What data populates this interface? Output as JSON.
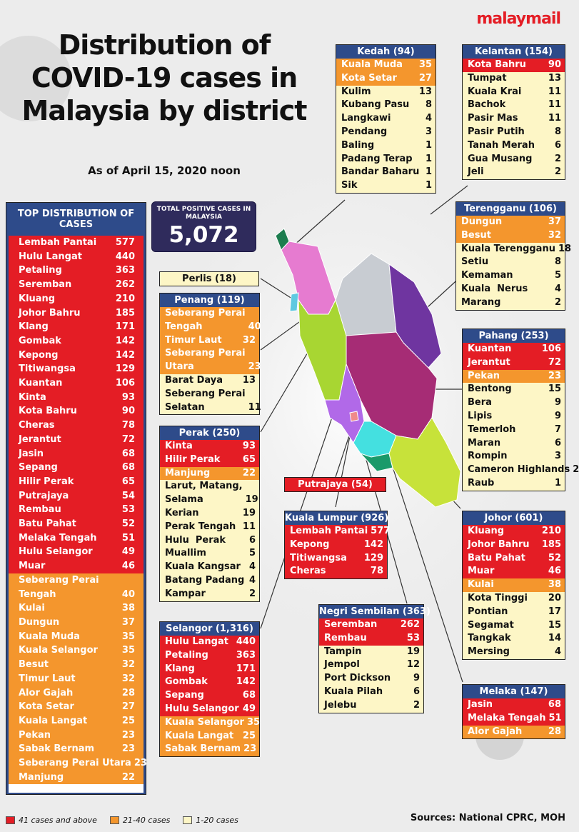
{
  "brand": "malaymail",
  "title": "Distribution of COVID-19 cases in Malaysia by district",
  "subtitle": "As of April 15, 2020 noon",
  "total_label": "TOTAL POSITIVE CASES IN MALAYSIA",
  "total_value": "5,072",
  "colors": {
    "red": "#e41d25",
    "orange": "#f4962d",
    "yellow": "#fdf6c6",
    "header": "#2e4b8a",
    "total_box": "#2f2b5c"
  },
  "legend": [
    {
      "label": "41 cases and above",
      "color": "#e41d25"
    },
    {
      "label": "21-40 cases",
      "color": "#f4962d"
    },
    {
      "label": "1-20 cases",
      "color": "#fdf6c6"
    }
  ],
  "sources": "Sources: National CPRC, MOH",
  "chart_data": {
    "type": "table",
    "top_distribution": {
      "title": "TOP DISTRIBUTION OF CASES",
      "rows": [
        {
          "name": "Lembah Pantai",
          "value": 577,
          "band": "r"
        },
        {
          "name": "Hulu Langat",
          "value": 440,
          "band": "r"
        },
        {
          "name": "Petaling",
          "value": 363,
          "band": "r"
        },
        {
          "name": "Seremban",
          "value": 262,
          "band": "r"
        },
        {
          "name": "Kluang",
          "value": 210,
          "band": "r"
        },
        {
          "name": "Johor Bahru",
          "value": 185,
          "band": "r"
        },
        {
          "name": "Klang",
          "value": 171,
          "band": "r"
        },
        {
          "name": "Gombak",
          "value": 142,
          "band": "r"
        },
        {
          "name": "Kepong",
          "value": 142,
          "band": "r"
        },
        {
          "name": "Titiwangsa",
          "value": 129,
          "band": "r"
        },
        {
          "name": "Kuantan",
          "value": 106,
          "band": "r"
        },
        {
          "name": "Kinta",
          "value": 93,
          "band": "r"
        },
        {
          "name": "Kota Bahru",
          "value": 90,
          "band": "r"
        },
        {
          "name": "Cheras",
          "value": 78,
          "band": "r"
        },
        {
          "name": "Jerantut",
          "value": 72,
          "band": "r"
        },
        {
          "name": "Jasin",
          "value": 68,
          "band": "r"
        },
        {
          "name": "Sepang",
          "value": 68,
          "band": "r"
        },
        {
          "name": "Hilir Perak",
          "value": 65,
          "band": "r"
        },
        {
          "name": "Putrajaya",
          "value": 54,
          "band": "r"
        },
        {
          "name": "Rembau",
          "value": 53,
          "band": "r"
        },
        {
          "name": "Batu Pahat",
          "value": 52,
          "band": "r"
        },
        {
          "name": "Melaka Tengah",
          "value": 51,
          "band": "r"
        },
        {
          "name": "Hulu Selangor",
          "value": 49,
          "band": "r"
        },
        {
          "name": "Muar",
          "value": 46,
          "band": "r"
        },
        {
          "name": "Seberang Perai\nTengah",
          "value": 40,
          "band": "o"
        },
        {
          "name": "Kulai",
          "value": 38,
          "band": "o"
        },
        {
          "name": "Dungun",
          "value": 37,
          "band": "o"
        },
        {
          "name": "Kuala Muda",
          "value": 35,
          "band": "o"
        },
        {
          "name": "Kuala Selangor",
          "value": 35,
          "band": "o"
        },
        {
          "name": "Besut",
          "value": 32,
          "band": "o"
        },
        {
          "name": "Timur Laut",
          "value": 32,
          "band": "o"
        },
        {
          "name": "Alor Gajah",
          "value": 28,
          "band": "o"
        },
        {
          "name": "Kota Setar",
          "value": 27,
          "band": "o"
        },
        {
          "name": "Kuala Langat",
          "value": 25,
          "band": "o"
        },
        {
          "name": "Pekan",
          "value": 23,
          "band": "o"
        },
        {
          "name": "Sabak Bernam",
          "value": 23,
          "band": "o"
        },
        {
          "name": "Seberang Perai Utara",
          "value": 23,
          "band": "o"
        },
        {
          "name": "Manjung",
          "value": 22,
          "band": "o"
        }
      ]
    },
    "states": [
      {
        "id": "kedah",
        "title": "Kedah (94)",
        "rows": [
          {
            "name": "Kuala Muda",
            "value": 35,
            "band": "o"
          },
          {
            "name": "Kota Setar",
            "value": 27,
            "band": "o"
          },
          {
            "name": "Kulim",
            "value": 13,
            "band": "y"
          },
          {
            "name": "Kubang Pasu",
            "value": 8,
            "band": "y"
          },
          {
            "name": "Langkawi",
            "value": 4,
            "band": "y"
          },
          {
            "name": "Pendang",
            "value": 3,
            "band": "y"
          },
          {
            "name": "Baling",
            "value": 1,
            "band": "y"
          },
          {
            "name": "Padang Terap",
            "value": 1,
            "band": "y"
          },
          {
            "name": "Bandar Baharu",
            "value": 1,
            "band": "y"
          },
          {
            "name": "Sik",
            "value": 1,
            "band": "y"
          }
        ]
      },
      {
        "id": "kelantan",
        "title": "Kelantan (154)",
        "rows": [
          {
            "name": "Kota Bahru",
            "value": 90,
            "band": "r"
          },
          {
            "name": "Tumpat",
            "value": 13,
            "band": "y"
          },
          {
            "name": "Kuala Krai",
            "value": 11,
            "band": "y"
          },
          {
            "name": "Bachok",
            "value": 11,
            "band": "y"
          },
          {
            "name": "Pasir Mas",
            "value": 11,
            "band": "y"
          },
          {
            "name": "Pasir Putih",
            "value": 8,
            "band": "y"
          },
          {
            "name": "Tanah Merah",
            "value": 6,
            "band": "y"
          },
          {
            "name": "Gua Musang",
            "value": 2,
            "band": "y"
          },
          {
            "name": "Jeli",
            "value": 2,
            "band": "y"
          }
        ]
      },
      {
        "id": "terengganu",
        "title": "Terengganu (106)",
        "rows": [
          {
            "name": "Dungun",
            "value": 37,
            "band": "o"
          },
          {
            "name": "Besut",
            "value": 32,
            "band": "o"
          },
          {
            "name": "Kuala Terengganu",
            "value": 18,
            "band": "y"
          },
          {
            "name": "Setiu",
            "value": 8,
            "band": "y"
          },
          {
            "name": "Kemaman",
            "value": 5,
            "band": "y"
          },
          {
            "name": "Kuala  Nerus",
            "value": 4,
            "band": "y"
          },
          {
            "name": "Marang",
            "value": 2,
            "band": "y"
          }
        ]
      },
      {
        "id": "pahang",
        "title": "Pahang (253)",
        "rows": [
          {
            "name": "Kuantan",
            "value": 106,
            "band": "r"
          },
          {
            "name": "Jerantut",
            "value": 72,
            "band": "r"
          },
          {
            "name": "Pekan",
            "value": 23,
            "band": "o"
          },
          {
            "name": "Bentong",
            "value": 15,
            "band": "y"
          },
          {
            "name": "Bera",
            "value": 9,
            "band": "y"
          },
          {
            "name": "Lipis",
            "value": 9,
            "band": "y"
          },
          {
            "name": "Temerloh",
            "value": 7,
            "band": "y"
          },
          {
            "name": "Maran",
            "value": 6,
            "band": "y"
          },
          {
            "name": "Rompin",
            "value": 3,
            "band": "y"
          },
          {
            "name": "Cameron Highlands",
            "value": 2,
            "band": "y"
          },
          {
            "name": "Raub",
            "value": 1,
            "band": "y"
          }
        ]
      },
      {
        "id": "johor",
        "title": "Johor (601)",
        "rows": [
          {
            "name": "Kluang",
            "value": 210,
            "band": "r"
          },
          {
            "name": "Johor Bahru",
            "value": 185,
            "band": "r"
          },
          {
            "name": "Batu Pahat",
            "value": 52,
            "band": "r"
          },
          {
            "name": "Muar",
            "value": 46,
            "band": "r"
          },
          {
            "name": "Kulai",
            "value": 38,
            "band": "o"
          },
          {
            "name": "Kota Tinggi",
            "value": 20,
            "band": "y"
          },
          {
            "name": "Pontian",
            "value": 17,
            "band": "y"
          },
          {
            "name": "Segamat",
            "value": 15,
            "band": "y"
          },
          {
            "name": "Tangkak",
            "value": 14,
            "band": "y"
          },
          {
            "name": "Mersing",
            "value": 4,
            "band": "y"
          }
        ]
      },
      {
        "id": "melaka",
        "title": "Melaka (147)",
        "rows": [
          {
            "name": "Jasin",
            "value": 68,
            "band": "r"
          },
          {
            "name": "Melaka Tengah",
            "value": 51,
            "band": "r"
          },
          {
            "name": "Alor Gajah",
            "value": 28,
            "band": "o"
          }
        ]
      },
      {
        "id": "penang",
        "title": "Penang (119)",
        "rows": [
          {
            "name": "Seberang Perai\nTengah",
            "value": 40,
            "band": "o"
          },
          {
            "name": "Timur Laut",
            "value": 32,
            "band": "o"
          },
          {
            "name": "Seberang Perai\nUtara",
            "value": 23,
            "band": "o"
          },
          {
            "name": "Barat Daya",
            "value": 13,
            "band": "y"
          },
          {
            "name": "Seberang Perai\nSelatan",
            "value": 11,
            "band": "y"
          }
        ]
      },
      {
        "id": "perak",
        "title": "Perak (250)",
        "rows": [
          {
            "name": "Kinta",
            "value": 93,
            "band": "r"
          },
          {
            "name": "Hilir Perak",
            "value": 65,
            "band": "r"
          },
          {
            "name": "Manjung",
            "value": 22,
            "band": "o"
          },
          {
            "name": "Larut, Matang,\nSelama",
            "value": 19,
            "band": "y"
          },
          {
            "name": "Kerian",
            "value": 19,
            "band": "y"
          },
          {
            "name": "Perak Tengah",
            "value": 11,
            "band": "y"
          },
          {
            "name": "Hulu  Perak",
            "value": 6,
            "band": "y"
          },
          {
            "name": "Muallim",
            "value": 5,
            "band": "y"
          },
          {
            "name": "Kuala Kangsar",
            "value": 4,
            "band": "y"
          },
          {
            "name": "Batang Padang",
            "value": 4,
            "band": "y"
          },
          {
            "name": "Kampar",
            "value": 2,
            "band": "y"
          }
        ]
      },
      {
        "id": "selangor",
        "title": "Selangor (1,316)",
        "rows": [
          {
            "name": "Hulu Langat",
            "value": 440,
            "band": "r"
          },
          {
            "name": "Petaling",
            "value": 363,
            "band": "r"
          },
          {
            "name": "Klang",
            "value": 171,
            "band": "r"
          },
          {
            "name": "Gombak",
            "value": 142,
            "band": "r"
          },
          {
            "name": "Sepang",
            "value": 68,
            "band": "r"
          },
          {
            "name": "Hulu Selangor",
            "value": 49,
            "band": "r"
          },
          {
            "name": "Kuala Selangor",
            "value": 35,
            "band": "o"
          },
          {
            "name": "Kuala Langat",
            "value": 25,
            "band": "o"
          },
          {
            "name": "Sabak Bernam",
            "value": 23,
            "band": "o"
          }
        ]
      },
      {
        "id": "kl",
        "title": "Kuala Lumpur (926)",
        "rows": [
          {
            "name": "Lembah Pantai",
            "value": 577,
            "band": "r"
          },
          {
            "name": "Kepong",
            "value": 142,
            "band": "r"
          },
          {
            "name": "Titiwangsa",
            "value": 129,
            "band": "r"
          },
          {
            "name": "Cheras",
            "value": 78,
            "band": "r"
          }
        ]
      },
      {
        "id": "ns",
        "title": "Negri Sembilan (363)",
        "rows": [
          {
            "name": "Seremban",
            "value": 262,
            "band": "r"
          },
          {
            "name": "Rembau",
            "value": 53,
            "band": "r"
          },
          {
            "name": "Tampin",
            "value": 19,
            "band": "y"
          },
          {
            "name": "Jempol",
            "value": 12,
            "band": "y"
          },
          {
            "name": "Port Dickson",
            "value": 9,
            "band": "y"
          },
          {
            "name": "Kuala Pilah",
            "value": 6,
            "band": "y"
          },
          {
            "name": "Jelebu",
            "value": 2,
            "band": "y"
          }
        ]
      }
    ],
    "single_labels": [
      {
        "id": "perlis",
        "label": "Perlis (18)",
        "band": "y"
      },
      {
        "id": "putrajaya",
        "label": "Putrajaya (54)",
        "band": "r"
      }
    ]
  }
}
